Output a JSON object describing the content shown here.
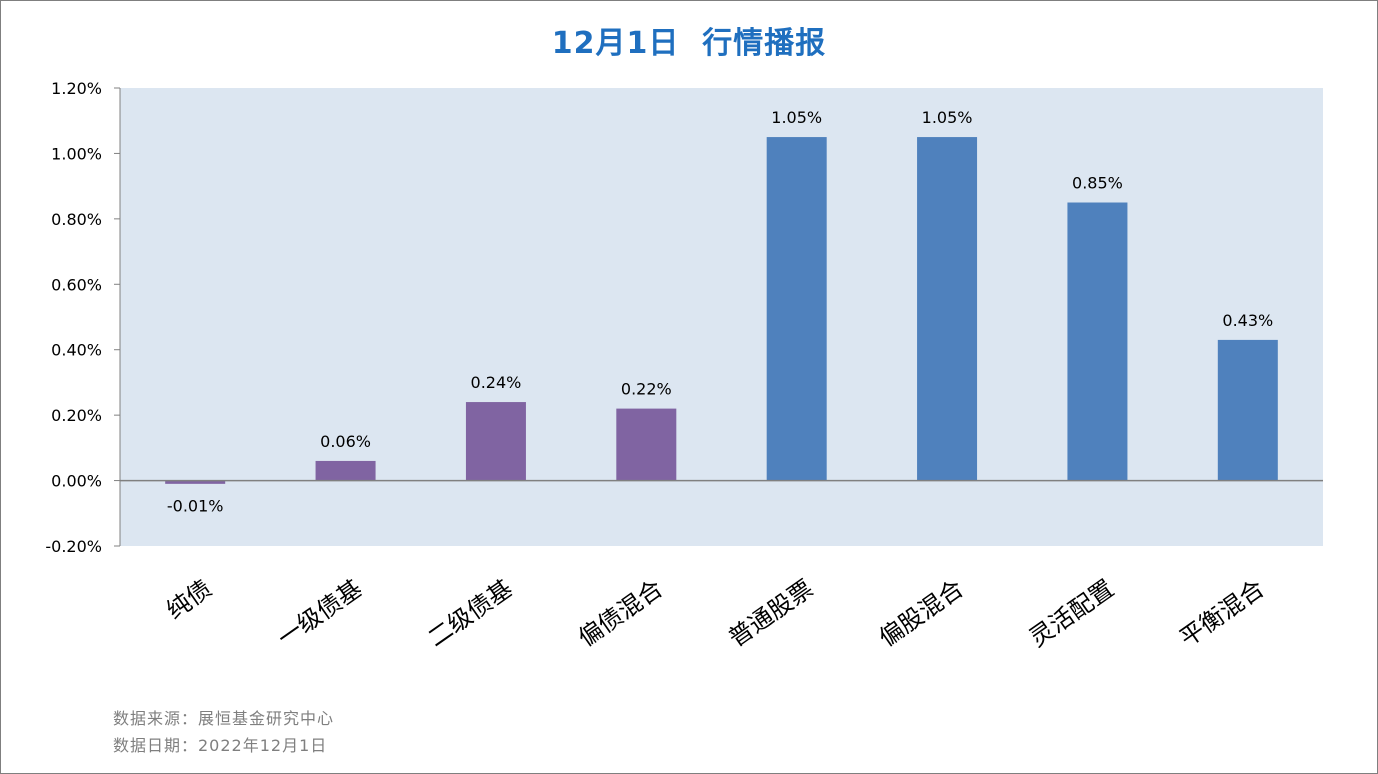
{
  "title": "12月1日  行情播报",
  "footer": {
    "source": "数据来源：展恒基金研究中心",
    "date": "数据日期：2022年12月1日"
  },
  "colors": {
    "title": "#1f6fbf",
    "plot_background": "#dce6f1",
    "bond_bar": "#8064a2",
    "equity_bar": "#4f81bd",
    "axis": "#808080"
  },
  "chart_data": {
    "type": "bar",
    "categories": [
      "纯债",
      "一级债基",
      "二级债基",
      "偏债混合",
      "普通股票",
      "偏股混合",
      "灵活配置",
      "平衡混合"
    ],
    "values": [
      -0.01,
      0.06,
      0.24,
      0.22,
      1.05,
      1.05,
      0.85,
      0.43
    ],
    "data_labels": [
      "-0.01%",
      "0.06%",
      "0.24%",
      "0.22%",
      "1.05%",
      "1.05%",
      "0.85%",
      "0.43%"
    ],
    "bar_colors": [
      "#8064a2",
      "#8064a2",
      "#8064a2",
      "#8064a2",
      "#4f81bd",
      "#4f81bd",
      "#4f81bd",
      "#4f81bd"
    ],
    "ylim": [
      -0.2,
      1.2
    ],
    "y_ticks": [
      -0.2,
      0.0,
      0.2,
      0.4,
      0.6,
      0.8,
      1.0,
      1.2
    ],
    "y_tick_labels": [
      "-0.20%",
      "0.00%",
      "0.20%",
      "0.40%",
      "0.60%",
      "0.80%",
      "1.00%",
      "1.20%"
    ],
    "xlabel": "",
    "ylabel": "",
    "grid": false,
    "legend": "none"
  }
}
